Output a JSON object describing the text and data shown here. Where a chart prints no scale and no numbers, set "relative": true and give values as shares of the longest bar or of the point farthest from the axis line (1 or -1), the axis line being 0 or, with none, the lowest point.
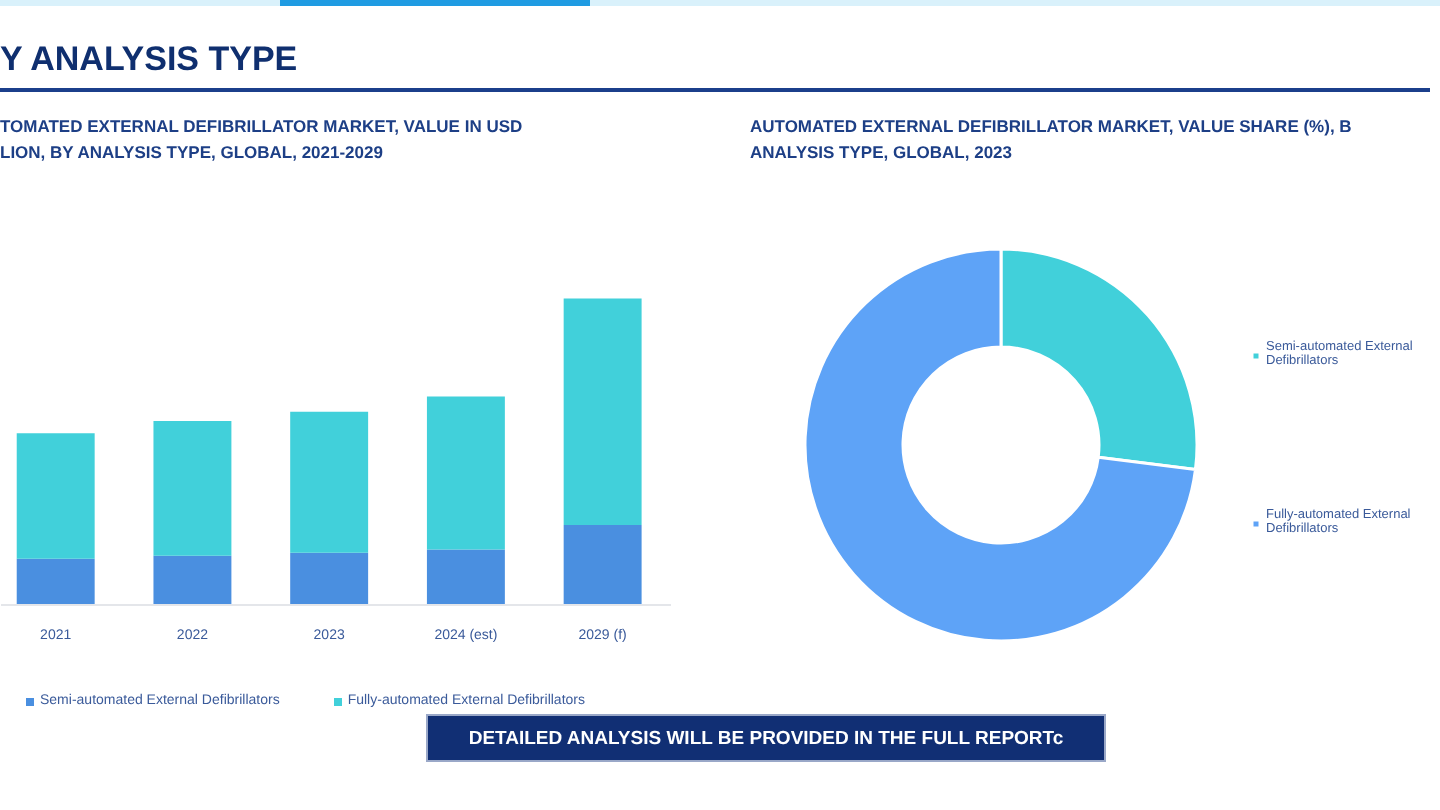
{
  "chart_data": [
    {
      "type": "bar",
      "title": "Y ANALYSIS TYPE",
      "subtitle": "TOMATED EXTERNAL DEFIBRILLATOR MARKET, VALUE IN USD\nLION, BY ANALYSIS TYPE, GLOBAL, 2021-2029",
      "categories": [
        "2021",
        "2022",
        "2023",
        "2024 (est)",
        "2029 (f)"
      ],
      "stacked": true,
      "relative": true,
      "legend": "bottom",
      "series": [
        {
          "name": "Semi-automated External Defibrillators",
          "color": "#4a8fe0",
          "values": [
            0.15,
            0.16,
            0.17,
            0.18,
            0.26
          ]
        },
        {
          "name": "Fully-automated External Defibrillators",
          "color": "#41d0da",
          "values": [
            0.41,
            0.44,
            0.46,
            0.5,
            0.74
          ]
        }
      ]
    },
    {
      "type": "donut",
      "title": "AUTOMATED EXTERNAL DEFIBRILLATOR MARKET, VALUE SHARE (%), B\nANALYSIS TYPE, GLOBAL, 2023",
      "categories": [
        "Semi-automated External Defibrillators",
        "Fully-automated External Defibrillators"
      ],
      "values": [
        27,
        73
      ],
      "colors": [
        "#41d0da",
        "#5ea3f7"
      ],
      "legend": "right",
      "annotations": [
        "DETAILED ANALYSIS WILL BE PROVIDED IN THE FULL REPORTc"
      ]
    }
  ]
}
